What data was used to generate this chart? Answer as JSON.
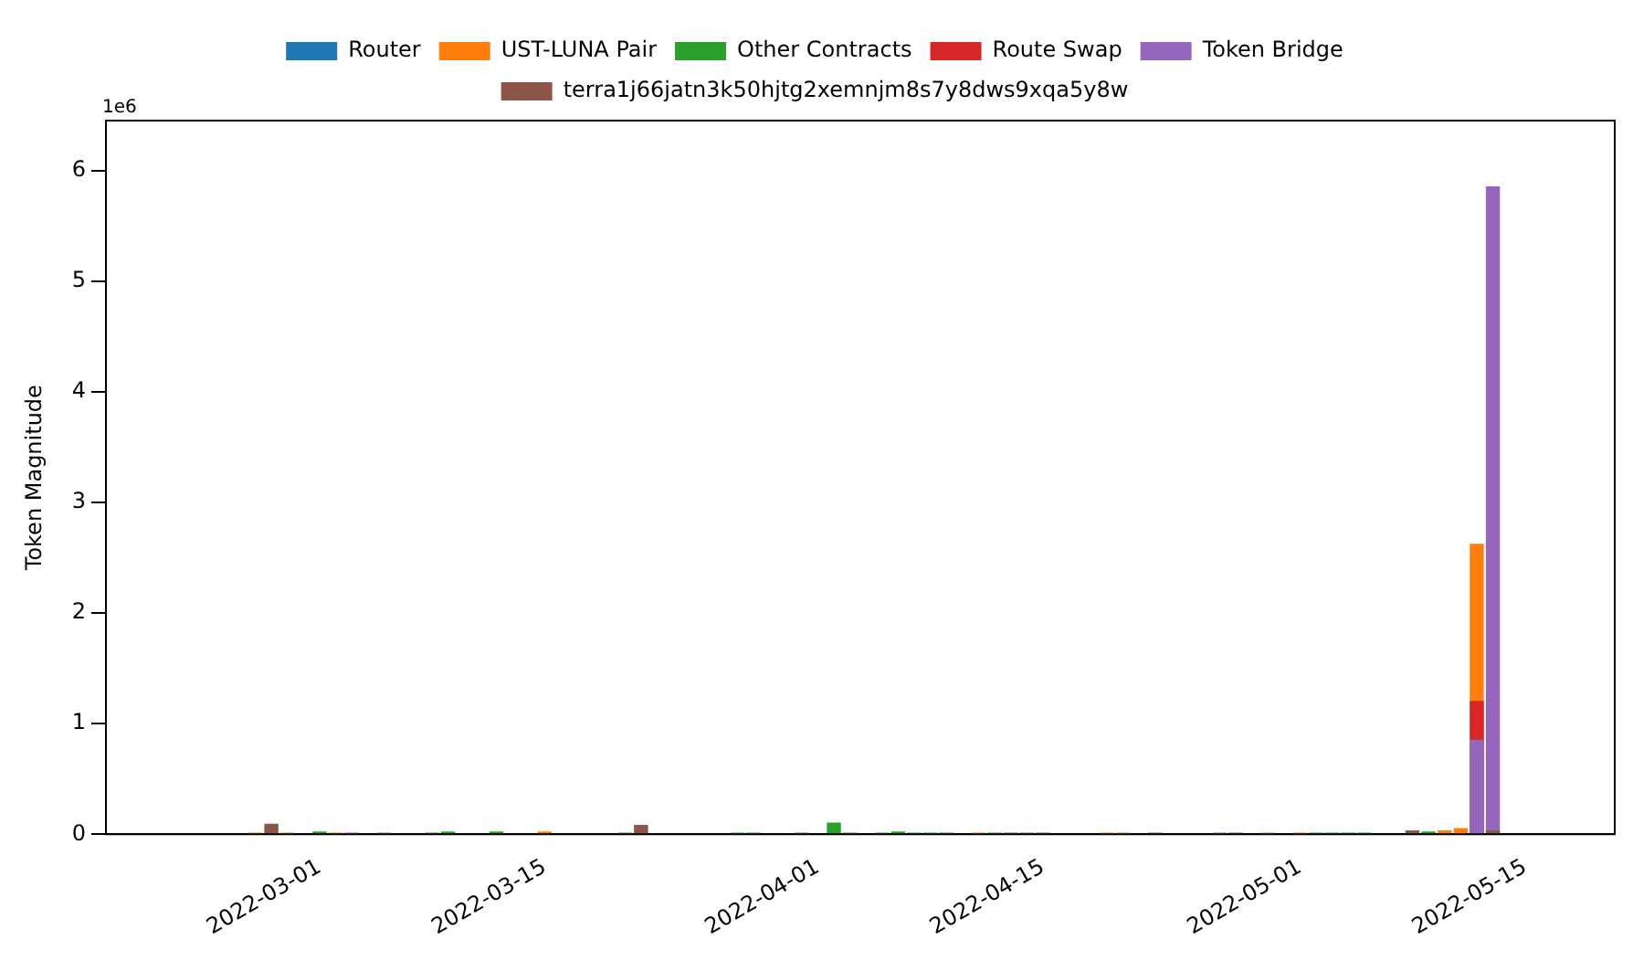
{
  "chart_data": {
    "type": "bar",
    "ylabel": "Token Magnitude",
    "annotations": [
      "1e6"
    ],
    "legend": "top",
    "grid": false,
    "xlim": [
      "2022-02-15T17:00",
      "2022-05-20T14:00"
    ],
    "xticks": [
      "2022-03-01",
      "2022-03-15",
      "2022-04-01",
      "2022-04-15",
      "2022-05-01",
      "2022-05-15"
    ],
    "ylim": [
      0,
      6.45
    ],
    "yticks": [
      0,
      1,
      2,
      3,
      4,
      5,
      6
    ],
    "series": [
      {
        "name": "Router",
        "color": "#1f77b4"
      },
      {
        "name": "UST-LUNA Pair",
        "color": "#ff7f0e",
        "x": [
          "2022-02-25",
          "2022-02-27",
          "2022-03-02",
          "2022-03-15",
          "2022-04-11",
          "2022-04-19",
          "2022-04-20",
          "2022-04-29",
          "2022-05-01",
          "2022-05-10",
          "2022-05-11",
          "2022-05-12"
        ],
        "values": [
          0.01,
          0.01,
          0.01,
          0.02,
          0.01,
          0.01,
          0.01,
          0.01,
          0.01,
          0.03,
          0.05,
          2.62
        ]
      },
      {
        "name": "Other Contracts",
        "color": "#2ca02c",
        "x": [
          "2022-03-01",
          "2022-03-08",
          "2022-03-09",
          "2022-03-12",
          "2022-03-20",
          "2022-03-27",
          "2022-03-28",
          "2022-03-31",
          "2022-04-02",
          "2022-04-03",
          "2022-04-05",
          "2022-04-06",
          "2022-04-07",
          "2022-04-08",
          "2022-04-09",
          "2022-04-12",
          "2022-04-14",
          "2022-05-02",
          "2022-05-03",
          "2022-05-04",
          "2022-05-05",
          "2022-05-09"
        ],
        "values": [
          0.02,
          0.01,
          0.02,
          0.02,
          0.01,
          0.01,
          0.01,
          0.01,
          0.1,
          0.01,
          0.01,
          0.02,
          0.01,
          0.01,
          0.01,
          0.01,
          0.01,
          0.01,
          0.01,
          0.01,
          0.01,
          0.02
        ]
      },
      {
        "name": "Route Swap",
        "color": "#d62728",
        "x": [
          "2022-05-12"
        ],
        "values": [
          1.2
        ]
      },
      {
        "name": "Token Bridge",
        "color": "#9467bd",
        "x": [
          "2022-03-03",
          "2022-03-05",
          "2022-04-26",
          "2022-05-12",
          "2022-05-13"
        ],
        "values": [
          0.01,
          0.01,
          0.01,
          0.85,
          5.85
        ]
      },
      {
        "name": "terra1j66jatn3k50hjtg2xemnjm8s7y8dws9xqa5y8w",
        "color": "#8c564b",
        "x": [
          "2022-02-26",
          "2022-03-21",
          "2022-04-13",
          "2022-04-15",
          "2022-04-22",
          "2022-04-27",
          "2022-05-08",
          "2022-05-13"
        ],
        "values": [
          0.09,
          0.08,
          0.01,
          0.01,
          0.01,
          0.01,
          0.03,
          0.03
        ]
      }
    ]
  }
}
